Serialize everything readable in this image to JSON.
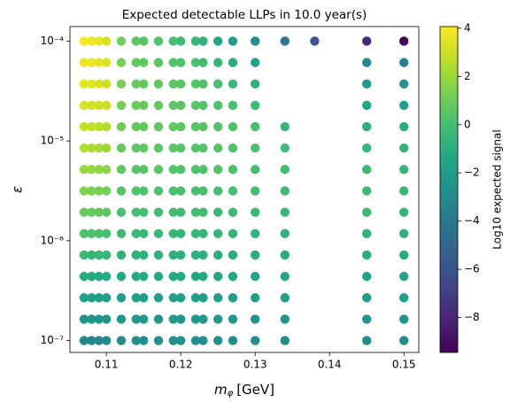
{
  "chart_data": {
    "type": "scatter",
    "title": "Expected detectable LLPs in 10.0 year(s)",
    "xlabel": {
      "symbol": "m",
      "subscript": "φ",
      "unit": "[GeV]"
    },
    "ylabel": "ε",
    "colorbar_label": "Log10 expected signal",
    "colormap": "viridis",
    "clim": [
      -9.45,
      4.07
    ],
    "cticks": [
      {
        "value": 4,
        "label": "4"
      },
      {
        "value": 2,
        "label": "2"
      },
      {
        "value": 0,
        "label": "0"
      },
      {
        "value": -2,
        "label": "−2"
      },
      {
        "value": -4,
        "label": "−4"
      },
      {
        "value": -6,
        "label": "−6"
      },
      {
        "value": -8,
        "label": "−8"
      }
    ],
    "log_y": true,
    "xlim": [
      0.1051,
      0.152
    ],
    "ylim": [
      7.6e-08,
      0.00014
    ],
    "xticks": [
      0.11,
      0.12,
      0.13,
      0.14,
      0.15
    ],
    "yticks": [
      {
        "value": 1e-07,
        "label": "10⁻⁷"
      },
      {
        "value": 1e-06,
        "label": "10⁻⁶"
      },
      {
        "value": 1e-05,
        "label": "10⁻⁵"
      },
      {
        "value": 0.0001,
        "label": "10⁻⁴"
      }
    ],
    "x": [
      0.107,
      0.108,
      0.109,
      0.11,
      0.112,
      0.114,
      0.115,
      0.117,
      0.119,
      0.12,
      0.122,
      0.123,
      0.125,
      0.127,
      0.13,
      0.134,
      0.138,
      0.145,
      0.15
    ],
    "y": [
      0.0001,
      6.105e-05,
      3.728e-05,
      2.276e-05,
      1.389e-05,
      8.483e-06,
      5.179e-06,
      3.162e-06,
      1.931e-06,
      1.179e-06,
      7.197e-07,
      4.394e-07,
      2.683e-07,
      1.638e-07,
      1e-07
    ],
    "values": [
      [
        3.9,
        3.8,
        3.6,
        3.3,
        2.9,
        2.5,
        2.0,
        1.5,
        0.9,
        0.3,
        -0.4,
        -1.1,
        -1.8,
        -2.6,
        -3.3
      ],
      [
        3.8,
        3.7,
        3.5,
        3.2,
        2.8,
        2.4,
        1.9,
        1.4,
        0.8,
        0.2,
        -0.5,
        -1.2,
        -1.9,
        -2.6,
        -3.3
      ],
      [
        3.6,
        3.5,
        3.3,
        3.0,
        2.7,
        2.3,
        1.8,
        1.3,
        0.7,
        0.1,
        -0.5,
        -1.2,
        -1.9,
        -2.6,
        -3.2
      ],
      [
        3.3,
        3.3,
        3.1,
        2.9,
        2.5,
        2.1,
        1.7,
        1.2,
        0.6,
        0.0,
        -0.6,
        -1.2,
        -1.9,
        -2.5,
        -3.1
      ],
      [
        1.2,
        1.3,
        1.3,
        1.2,
        1.1,
        0.9,
        0.7,
        0.4,
        0.1,
        -0.3,
        -0.8,
        -1.3,
        -1.9,
        -2.4,
        -3.0
      ],
      [
        0.6,
        0.8,
        0.9,
        0.9,
        0.8,
        0.7,
        0.5,
        0.3,
        0.0,
        -0.4,
        -0.8,
        -1.3,
        -1.8,
        -2.4,
        -2.9
      ],
      [
        0.5,
        0.7,
        0.8,
        0.8,
        0.8,
        0.7,
        0.5,
        0.3,
        0.0,
        -0.4,
        -0.8,
        -1.3,
        -1.8,
        -2.3,
        -2.9
      ],
      [
        0.3,
        0.6,
        0.7,
        0.8,
        0.7,
        0.6,
        0.5,
        0.2,
        -0.1,
        -0.4,
        -0.8,
        -1.3,
        -1.8,
        -2.3,
        -2.8
      ],
      [
        0.0,
        0.4,
        0.6,
        0.7,
        0.7,
        0.6,
        0.4,
        0.2,
        -0.1,
        -0.5,
        -0.9,
        -1.3,
        -1.8,
        -2.3,
        -2.8
      ],
      [
        -0.2,
        0.3,
        0.5,
        0.6,
        0.6,
        0.5,
        0.4,
        0.1,
        -0.2,
        -0.5,
        -0.9,
        -1.3,
        -1.8,
        -2.3,
        -2.8
      ],
      [
        -0.5,
        0.1,
        0.4,
        0.5,
        0.5,
        0.5,
        0.3,
        0.1,
        -0.2,
        -0.5,
        -0.9,
        -1.4,
        -1.8,
        -2.3,
        -2.8
      ],
      [
        -0.8,
        -0.1,
        0.3,
        0.4,
        0.5,
        0.4,
        0.3,
        0.1,
        -0.2,
        -0.5,
        -0.9,
        -1.4,
        -1.8,
        -2.3,
        -2.8
      ],
      [
        -1.4,
        -0.5,
        0.0,
        0.3,
        0.4,
        0.4,
        0.3,
        0.0,
        -0.3,
        -0.6,
        -1.0,
        -1.4,
        -1.9,
        -2.3,
        -2.8
      ],
      [
        -2.0,
        -1.0,
        -0.3,
        0.1,
        0.3,
        0.3,
        0.2,
        0.0,
        -0.3,
        -0.6,
        -1.0,
        -1.4,
        -1.9,
        -2.4,
        -2.8
      ],
      [
        -2.9,
        -1.7,
        -0.8,
        -0.2,
        0.1,
        0.2,
        0.1,
        -0.1,
        -0.4,
        -0.7,
        -1.0,
        -1.5,
        -1.9,
        -2.4,
        -2.9
      ],
      [
        -4.2,
        null,
        null,
        null,
        -0.5,
        -0.2,
        -0.1,
        -0.2,
        -0.4,
        -0.7,
        -1.1,
        -1.5,
        -2.0,
        -2.4,
        -2.9
      ],
      [
        -5.8,
        null,
        null,
        null,
        null,
        null,
        null,
        null,
        null,
        null,
        null,
        null,
        null,
        null,
        null
      ],
      [
        -7.8,
        -3.2,
        -2.2,
        -1.4,
        -0.9,
        -0.6,
        -0.3,
        -0.3,
        -0.4,
        -0.7,
        -1.1,
        -1.5,
        -2.0,
        -2.4,
        -2.9
      ],
      [
        -9.4,
        -3.6,
        -2.6,
        -1.8,
        -1.1,
        -0.7,
        -0.6,
        -0.5,
        -0.6,
        -0.8,
        -1.2,
        -1.6,
        -2.0,
        -2.5,
        -3.0
      ]
    ]
  }
}
